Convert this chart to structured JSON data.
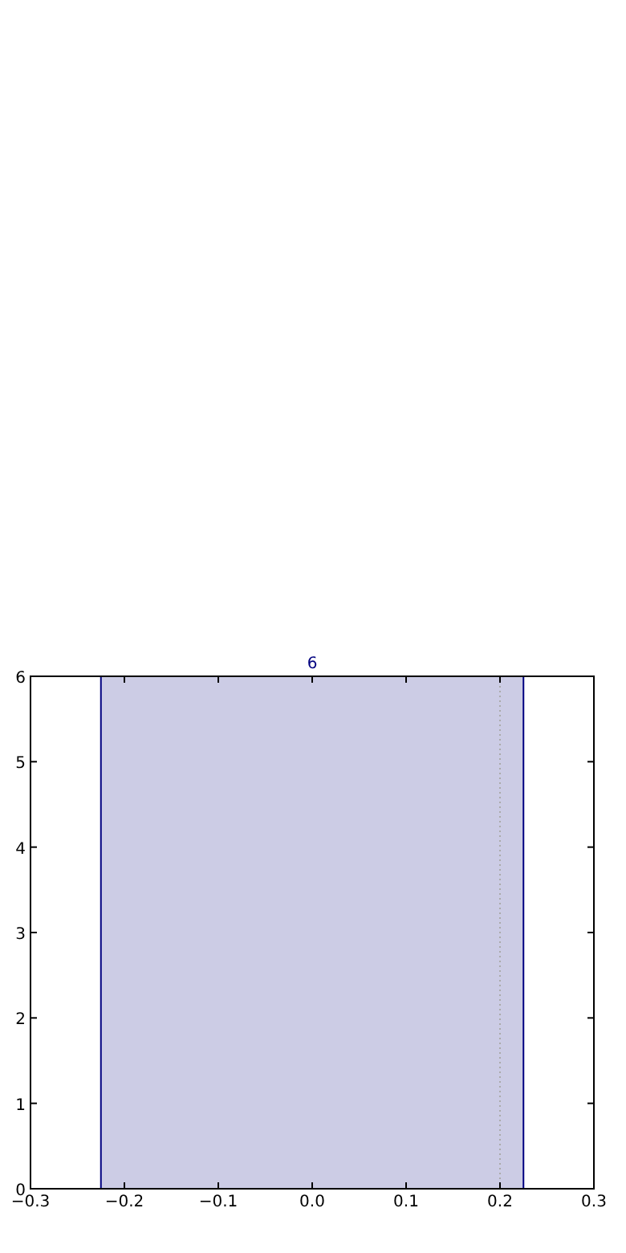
{
  "chart_data": {
    "type": "histogram",
    "bins": [
      -0.225,
      0.225
    ],
    "values": [
      6
    ],
    "color": "#ccccE5",
    "xlim": [
      -0.3,
      0.3
    ],
    "xticks": [
      -0.3,
      -0.2,
      -0.1,
      {
        "value": 0,
        "label": "0.0"
      },
      0.1,
      0.2,
      0.3
    ],
    "ylim": [
      0,
      6
    ],
    "yticks": [
      0,
      1,
      2,
      3,
      4,
      5,
      6
    ],
    "data_labels": true,
    "ref_lines": [
      {
        "axis": "x",
        "value": 0.2,
        "color": "#aaaaaa",
        "line_style": "dotted"
      }
    ]
  }
}
